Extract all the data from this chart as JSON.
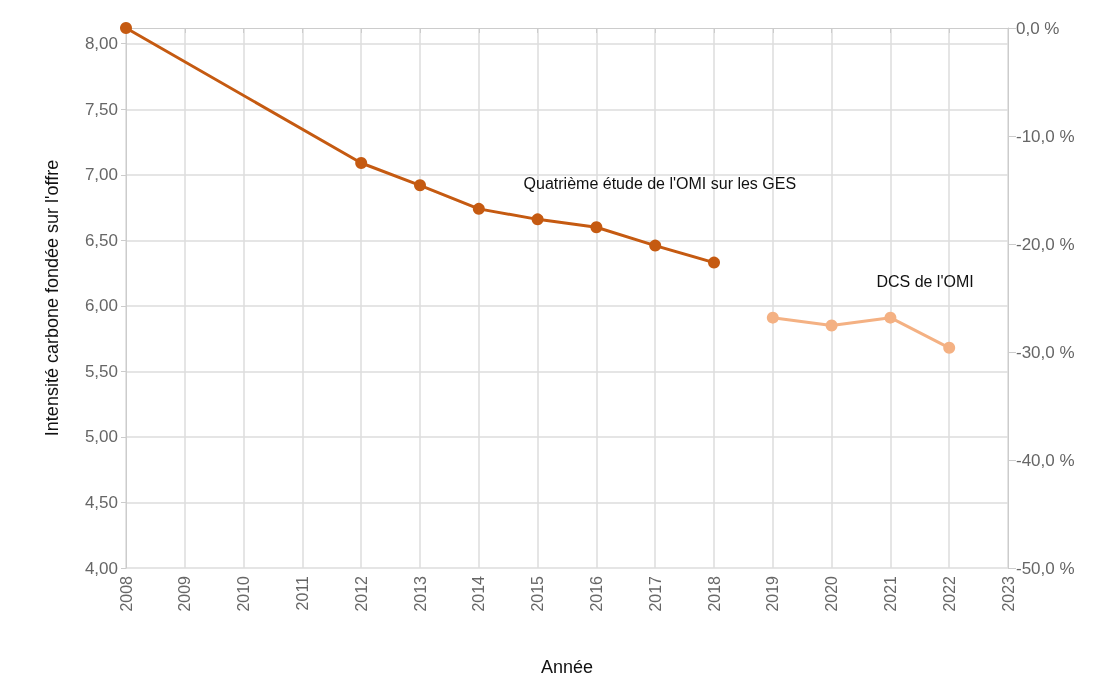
{
  "chart_data": {
    "type": "line",
    "xlabel": "Année",
    "ylabel": "Intensité carbone fondée sur l'offre",
    "xlim": [
      2008,
      2023
    ],
    "xticks": [
      2008,
      2009,
      2010,
      2011,
      2012,
      2013,
      2014,
      2015,
      2016,
      2017,
      2018,
      2019,
      2020,
      2021,
      2022,
      2023
    ],
    "ylim": [
      4,
      8.12
    ],
    "yticks": [
      {
        "value": 4,
        "label": "4,00"
      },
      {
        "value": 4.5,
        "label": "4,50"
      },
      {
        "value": 5,
        "label": "5,00"
      },
      {
        "value": 5.5,
        "label": "5,50"
      },
      {
        "value": 6,
        "label": "6,00"
      },
      {
        "value": 6.5,
        "label": "6,50"
      },
      {
        "value": 7,
        "label": "7,00"
      },
      {
        "value": 7.5,
        "label": "7,50"
      },
      {
        "value": 8,
        "label": "8,00"
      }
    ],
    "y2lim": [
      -50,
      0
    ],
    "y2ticks": [
      {
        "value": -50,
        "label": "-50,0 %"
      },
      {
        "value": -40,
        "label": "-40,0 %"
      },
      {
        "value": -30,
        "label": "-30,0 %"
      },
      {
        "value": -20,
        "label": "-20,0 %"
      },
      {
        "value": -10,
        "label": "-10,0 %"
      },
      {
        "value": 0,
        "label": "0,0 %"
      }
    ],
    "grid": true,
    "legend": false,
    "marker": "circle",
    "line_style": "solid",
    "series": [
      {
        "name": "Quatrième étude de l'OMI sur les GES",
        "color": "#c55a11",
        "x": [
          2008,
          2012,
          2013,
          2014,
          2015,
          2016,
          2017,
          2018
        ],
        "values": [
          8.12,
          7.09,
          6.92,
          6.74,
          6.66,
          6.6,
          6.46,
          6.33
        ]
      },
      {
        "name": "DCS de l'OMI",
        "color": "#f4b183",
        "x": [
          2019,
          2020,
          2021,
          2022
        ],
        "values": [
          5.91,
          5.85,
          5.91,
          5.68
        ]
      }
    ]
  }
}
